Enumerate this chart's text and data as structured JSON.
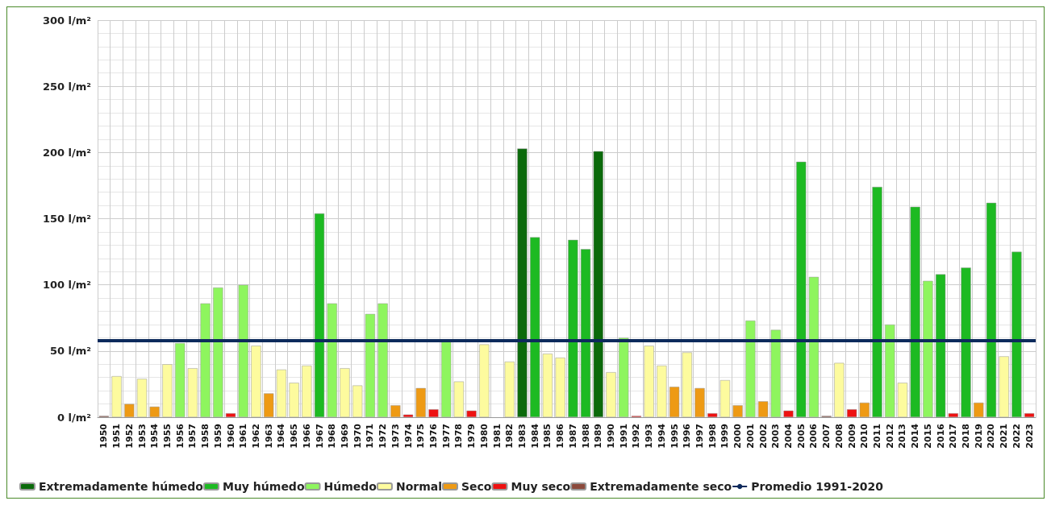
{
  "chart_data": {
    "type": "bar",
    "stacked": true,
    "categories": [
      "1950",
      "1951",
      "1952",
      "1953",
      "1954",
      "1955",
      "1956",
      "1957",
      "1958",
      "1959",
      "1960",
      "1961",
      "1962",
      "1963",
      "1964",
      "1965",
      "1966",
      "1967",
      "1968",
      "1969",
      "1970",
      "1971",
      "1972",
      "1973",
      "1974",
      "1975",
      "1976",
      "1977",
      "1978",
      "1979",
      "1980",
      "1981",
      "1982",
      "1983",
      "1984",
      "1985",
      "1986",
      "1987",
      "1988",
      "1989",
      "1990",
      "1991",
      "1992",
      "1993",
      "1994",
      "1995",
      "1996",
      "1997",
      "1998",
      "1999",
      "2000",
      "2001",
      "2002",
      "2003",
      "2004",
      "2005",
      "2006",
      "2007",
      "2008",
      "2009",
      "2010",
      "2011",
      "2012",
      "2013",
      "2014",
      "2015",
      "2016",
      "2017",
      "2018",
      "2019",
      "2020",
      "2021",
      "2022",
      "2023"
    ],
    "series": [
      {
        "name": "Extremadamente húmedo",
        "color": "#0b6a0b",
        "values": [
          null,
          null,
          null,
          null,
          null,
          null,
          null,
          null,
          null,
          null,
          null,
          null,
          null,
          null,
          null,
          null,
          null,
          null,
          null,
          null,
          null,
          null,
          null,
          null,
          null,
          null,
          null,
          null,
          null,
          null,
          null,
          null,
          null,
          203,
          null,
          null,
          null,
          null,
          null,
          201,
          null,
          null,
          null,
          null,
          null,
          null,
          null,
          null,
          null,
          null,
          null,
          null,
          null,
          null,
          null,
          null,
          null,
          null,
          null,
          null,
          null,
          null,
          null,
          null,
          null,
          null,
          null,
          null,
          null,
          null,
          null,
          null,
          null,
          null
        ]
      },
      {
        "name": "Muy húmedo",
        "color": "#1dba22",
        "values": [
          null,
          null,
          null,
          null,
          null,
          null,
          null,
          null,
          null,
          null,
          null,
          null,
          null,
          null,
          null,
          null,
          null,
          154,
          null,
          null,
          null,
          null,
          null,
          null,
          null,
          null,
          null,
          null,
          null,
          null,
          null,
          null,
          null,
          null,
          136,
          null,
          null,
          134,
          127,
          null,
          null,
          null,
          null,
          null,
          null,
          null,
          null,
          null,
          null,
          null,
          null,
          null,
          null,
          null,
          null,
          193,
          null,
          null,
          null,
          null,
          null,
          174,
          null,
          null,
          159,
          null,
          108,
          null,
          113,
          null,
          162,
          null,
          125,
          null
        ]
      },
      {
        "name": "Húmedo",
        "color": "#8ef55e",
        "values": [
          null,
          null,
          null,
          null,
          null,
          null,
          56,
          null,
          86,
          98,
          null,
          100,
          null,
          null,
          null,
          null,
          null,
          null,
          86,
          null,
          null,
          78,
          86,
          null,
          null,
          null,
          null,
          57,
          null,
          null,
          null,
          null,
          null,
          null,
          null,
          null,
          null,
          null,
          null,
          null,
          null,
          60,
          null,
          null,
          null,
          null,
          null,
          null,
          null,
          null,
          null,
          73,
          null,
          66,
          null,
          null,
          106,
          null,
          null,
          null,
          null,
          null,
          70,
          null,
          null,
          103,
          null,
          null,
          null,
          null,
          null,
          null,
          null,
          null
        ]
      },
      {
        "name": "Normal",
        "color": "#fdfb9e",
        "values": [
          null,
          31,
          null,
          29,
          null,
          40,
          null,
          37,
          null,
          null,
          null,
          null,
          54,
          null,
          36,
          26,
          39,
          null,
          null,
          37,
          24,
          null,
          null,
          null,
          null,
          null,
          null,
          null,
          27,
          null,
          55,
          null,
          42,
          null,
          null,
          48,
          45,
          null,
          null,
          null,
          34,
          null,
          null,
          54,
          39,
          null,
          49,
          null,
          null,
          28,
          null,
          null,
          null,
          null,
          null,
          null,
          null,
          null,
          41,
          null,
          null,
          null,
          null,
          26,
          null,
          null,
          null,
          null,
          null,
          null,
          null,
          46,
          null,
          null
        ]
      },
      {
        "name": "Seco",
        "color": "#ee9a14",
        "values": [
          null,
          null,
          10,
          null,
          8,
          null,
          null,
          null,
          null,
          null,
          null,
          null,
          null,
          18,
          null,
          null,
          null,
          null,
          null,
          null,
          null,
          null,
          null,
          9,
          null,
          22,
          null,
          null,
          null,
          null,
          null,
          null,
          null,
          null,
          null,
          null,
          null,
          null,
          null,
          null,
          null,
          null,
          null,
          null,
          null,
          23,
          null,
          22,
          null,
          null,
          9,
          null,
          12,
          null,
          null,
          null,
          null,
          null,
          null,
          null,
          11,
          null,
          null,
          null,
          null,
          null,
          null,
          null,
          null,
          11,
          null,
          null,
          null,
          null
        ]
      },
      {
        "name": "Muy seco",
        "color": "#ee1111",
        "values": [
          null,
          null,
          null,
          null,
          null,
          null,
          null,
          null,
          null,
          null,
          3,
          null,
          null,
          null,
          null,
          null,
          null,
          null,
          null,
          null,
          null,
          null,
          null,
          null,
          2,
          null,
          6,
          null,
          null,
          5,
          null,
          null,
          null,
          null,
          null,
          null,
          null,
          null,
          null,
          null,
          null,
          null,
          1,
          null,
          null,
          null,
          null,
          null,
          3,
          null,
          null,
          null,
          null,
          null,
          5,
          null,
          null,
          null,
          null,
          6,
          null,
          null,
          null,
          null,
          null,
          null,
          null,
          3,
          null,
          null,
          null,
          null,
          null,
          3
        ]
      },
      {
        "name": "Extremadamente seco",
        "color": "#8b4a3c",
        "values": [
          1,
          null,
          null,
          null,
          null,
          null,
          null,
          null,
          null,
          null,
          null,
          null,
          null,
          null,
          null,
          null,
          null,
          null,
          null,
          null,
          null,
          null,
          null,
          null,
          null,
          null,
          null,
          null,
          null,
          null,
          null,
          null,
          null,
          null,
          null,
          null,
          null,
          null,
          null,
          null,
          null,
          null,
          null,
          null,
          null,
          null,
          null,
          null,
          null,
          null,
          null,
          null,
          null,
          null,
          null,
          null,
          null,
          1,
          null,
          null,
          null,
          null,
          null,
          null,
          null,
          null,
          null,
          null,
          null,
          null,
          null,
          null,
          null,
          null
        ]
      }
    ],
    "ref_lines": [
      {
        "axis": "y",
        "value": 58,
        "label": "Promedio 1991-2020",
        "color": "#0d2a5c",
        "line_style": "solid"
      }
    ],
    "ylim": [
      0,
      300
    ],
    "yticks": [
      {
        "value": 0,
        "label": "0 l/m²"
      },
      {
        "value": 50,
        "label": "50 l/m²"
      },
      {
        "value": 100,
        "label": "100 l/m²"
      },
      {
        "value": 150,
        "label": "150 l/m²"
      },
      {
        "value": 200,
        "label": "200 l/m²"
      },
      {
        "value": 250,
        "label": "250 l/m²"
      },
      {
        "value": 300,
        "label": "300 l/m²"
      }
    ],
    "grid": true,
    "legend": "bottom"
  }
}
